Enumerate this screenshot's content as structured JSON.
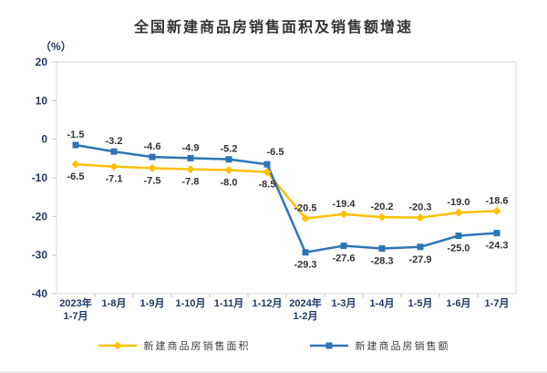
{
  "colors": {
    "axis_line": "#D9D9D9",
    "tick": "#BFBFBF",
    "axis_text": "#1F3864",
    "data_label": "#333333",
    "title_text": "#333333",
    "series_area": "#FFC000",
    "series_amount": "#2E75B6"
  },
  "chart_data": {
    "type": "line",
    "title": "全国新建商品房销售面积及销售额增速",
    "xlabel": "",
    "ylabel": "（%）",
    "ylim": [
      -40,
      20
    ],
    "yticks": [
      20,
      10,
      0,
      -10,
      -20,
      -30,
      -40
    ],
    "grid": false,
    "legend_position": "bottom",
    "categories": [
      "2023年\n1-7月",
      "1-8月",
      "1-9月",
      "1-10月",
      "1-11月",
      "1-12月",
      "2024年\n1-2月",
      "1-3月",
      "1-4月",
      "1-5月",
      "1-6月",
      "1-7月"
    ],
    "series": [
      {
        "key": "sales-area",
        "name": "新建商品房销售面积",
        "color": "#FFC000",
        "marker": "diamond",
        "values": [
          -6.5,
          -7.1,
          -7.5,
          -7.8,
          -8.0,
          -8.5,
          -20.5,
          -19.4,
          -20.2,
          -20.3,
          -19.0,
          -18.6
        ]
      },
      {
        "key": "sales-amount",
        "name": "新建商品房销售额",
        "color": "#2E75B6",
        "marker": "square",
        "values": [
          -1.5,
          -3.2,
          -4.6,
          -4.9,
          -5.2,
          -6.5,
          -29.3,
          -27.6,
          -28.3,
          -27.9,
          -25.0,
          -24.3
        ]
      }
    ]
  }
}
